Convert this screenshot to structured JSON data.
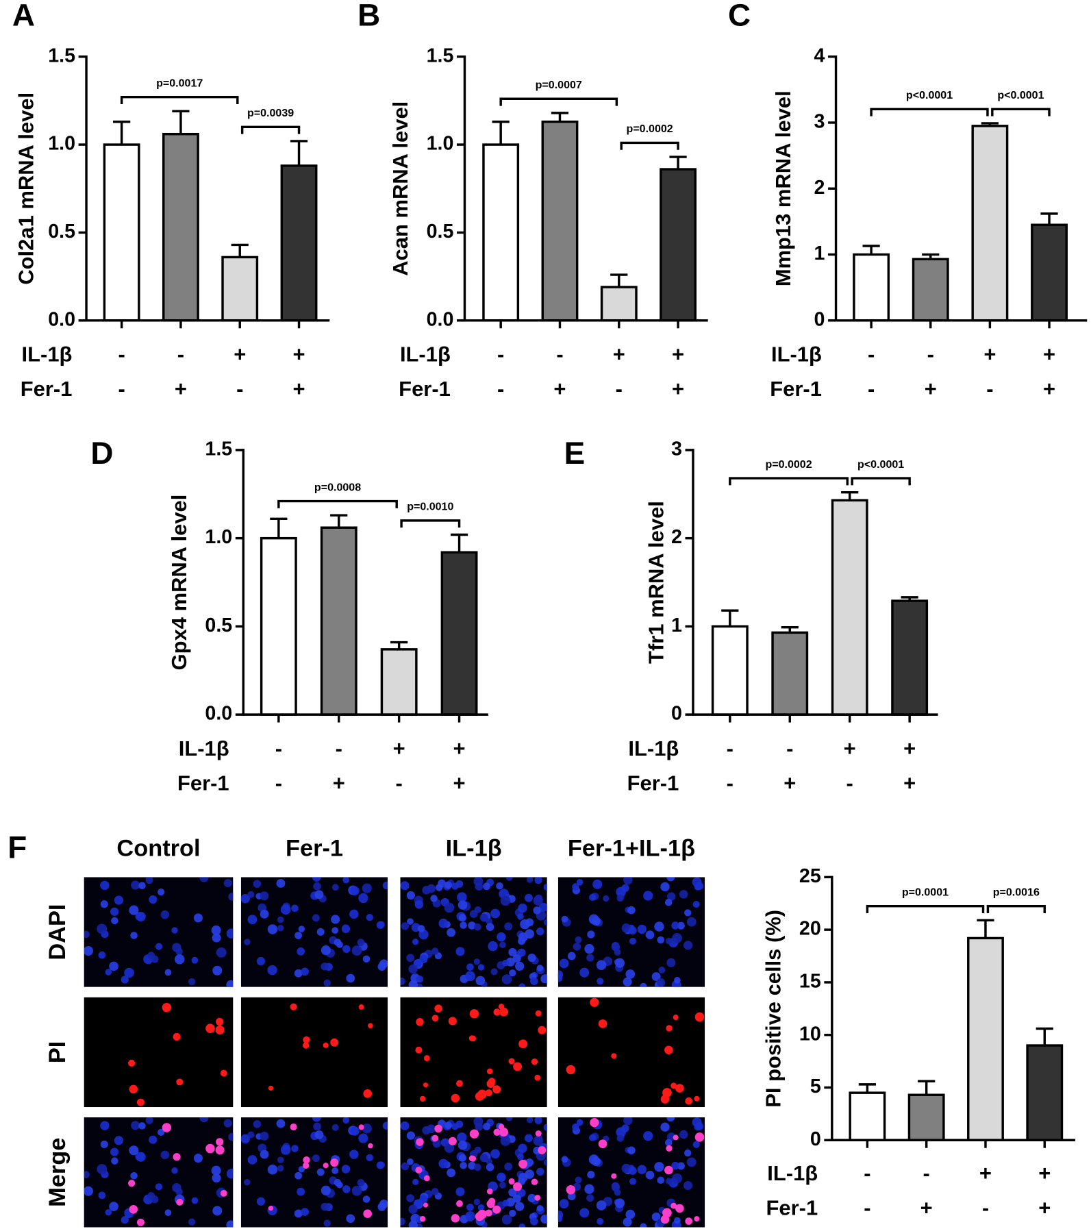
{
  "chart_data": [
    {
      "type": "bar",
      "panel": "A",
      "ylabel": "Col2a1 mRNA level",
      "ylim": [
        0,
        1.5
      ],
      "yticks": [
        {
          "value": 0,
          "label": "0.0"
        },
        0.5,
        {
          "value": 1,
          "label": "1.0"
        },
        1.5
      ],
      "values": [
        1.0,
        1.06,
        0.36,
        0.88
      ],
      "errors": [
        0.13,
        0.13,
        0.07,
        0.14
      ],
      "colors": [
        "#ffffff",
        "#808080",
        "#d9d9d9",
        "#333333"
      ],
      "conditions": [
        {
          "label": "IL-1β",
          "signs": [
            "-",
            "-",
            "+",
            "+"
          ]
        },
        {
          "label": "Fer-1",
          "signs": [
            "-",
            "+",
            "-",
            "+"
          ]
        }
      ],
      "comparisons": [
        {
          "between": [
            0,
            2
          ],
          "label": "p=0.0017"
        },
        {
          "between": [
            2,
            3
          ],
          "label": "p=0.0039"
        }
      ]
    },
    {
      "type": "bar",
      "panel": "B",
      "ylabel": "Acan mRNA level",
      "ylim": [
        0,
        1.5
      ],
      "yticks": [
        {
          "value": 0,
          "label": "0.0"
        },
        0.5,
        {
          "value": 1,
          "label": "1.0"
        },
        1.5
      ],
      "values": [
        1.0,
        1.13,
        0.19,
        0.86
      ],
      "errors": [
        0.13,
        0.05,
        0.07,
        0.07
      ],
      "colors": [
        "#ffffff",
        "#808080",
        "#d9d9d9",
        "#333333"
      ],
      "conditions": [
        {
          "label": "IL-1β",
          "signs": [
            "-",
            "-",
            "+",
            "+"
          ]
        },
        {
          "label": "Fer-1",
          "signs": [
            "-",
            "+",
            "-",
            "+"
          ]
        }
      ],
      "comparisons": [
        {
          "between": [
            0,
            2
          ],
          "label": "p=0.0007"
        },
        {
          "between": [
            2,
            3
          ],
          "label": "p=0.0002"
        }
      ]
    },
    {
      "type": "bar",
      "panel": "C",
      "ylabel": "Mmp13 mRNA level",
      "ylim": [
        0,
        4
      ],
      "yticks": [
        0,
        1,
        2,
        3,
        4
      ],
      "values": [
        1.0,
        0.93,
        2.95,
        1.45
      ],
      "errors": [
        0.13,
        0.07,
        0.04,
        0.17
      ],
      "colors": [
        "#ffffff",
        "#808080",
        "#d9d9d9",
        "#333333"
      ],
      "conditions": [
        {
          "label": "IL-1β",
          "signs": [
            "-",
            "-",
            "+",
            "+"
          ]
        },
        {
          "label": "Fer-1",
          "signs": [
            "-",
            "+",
            "-",
            "+"
          ]
        }
      ],
      "comparisons": [
        {
          "between": [
            0,
            2
          ],
          "label": "p<0.0001"
        },
        {
          "between": [
            2,
            3
          ],
          "label": "p<0.0001"
        }
      ]
    },
    {
      "type": "bar",
      "panel": "D",
      "ylabel": "Gpx4 mRNA level",
      "ylim": [
        0,
        1.5
      ],
      "yticks": [
        {
          "value": 0,
          "label": "0.0"
        },
        0.5,
        {
          "value": 1,
          "label": "1.0"
        },
        1.5
      ],
      "values": [
        1.0,
        1.06,
        0.37,
        0.92
      ],
      "errors": [
        0.11,
        0.07,
        0.04,
        0.1
      ],
      "colors": [
        "#ffffff",
        "#808080",
        "#d9d9d9",
        "#333333"
      ],
      "conditions": [
        {
          "label": "IL-1β",
          "signs": [
            "-",
            "-",
            "+",
            "+"
          ]
        },
        {
          "label": "Fer-1",
          "signs": [
            "-",
            "+",
            "-",
            "+"
          ]
        }
      ],
      "comparisons": [
        {
          "between": [
            0,
            2
          ],
          "label": "p=0.0008"
        },
        {
          "between": [
            2,
            3
          ],
          "label": "p=0.0010"
        }
      ]
    },
    {
      "type": "bar",
      "panel": "E",
      "ylabel": "Tfr1 mRNA level",
      "ylim": [
        0,
        3
      ],
      "yticks": [
        0,
        1,
        2,
        3
      ],
      "values": [
        1.0,
        0.93,
        2.43,
        1.29
      ],
      "errors": [
        0.18,
        0.06,
        0.09,
        0.04
      ],
      "colors": [
        "#ffffff",
        "#808080",
        "#d9d9d9",
        "#333333"
      ],
      "conditions": [
        {
          "label": "IL-1β",
          "signs": [
            "-",
            "-",
            "+",
            "+"
          ]
        },
        {
          "label": "Fer-1",
          "signs": [
            "-",
            "+",
            "-",
            "+"
          ]
        }
      ],
      "comparisons": [
        {
          "between": [
            0,
            2
          ],
          "label": "p=0.0002"
        },
        {
          "between": [
            2,
            3
          ],
          "label": "p<0.0001"
        }
      ]
    },
    {
      "type": "bar",
      "ylabel": "PI positive cells (%)",
      "ylim": [
        0,
        25
      ],
      "yticks": [
        0,
        5,
        10,
        15,
        20,
        25
      ],
      "values": [
        4.5,
        4.3,
        19.2,
        9.0
      ],
      "errors": [
        0.8,
        1.3,
        1.7,
        1.6
      ],
      "colors": [
        "#ffffff",
        "#808080",
        "#d9d9d9",
        "#333333"
      ],
      "conditions": [
        {
          "label": "IL-1β",
          "signs": [
            "-",
            "-",
            "+",
            "+"
          ]
        },
        {
          "label": "Fer-1",
          "signs": [
            "-",
            "+",
            "-",
            "+"
          ]
        }
      ],
      "comparisons": [
        {
          "between": [
            0,
            2
          ],
          "label": "p=0.0001"
        },
        {
          "between": [
            2,
            3
          ],
          "label": "p=0.0016"
        }
      ]
    }
  ],
  "image_panel": {
    "panel": "F",
    "columns": [
      "Control",
      "Fer-1",
      "IL-1β",
      "Fer-1+IL-1β"
    ],
    "rows": [
      "DAPI",
      "PI",
      "Merge"
    ]
  }
}
